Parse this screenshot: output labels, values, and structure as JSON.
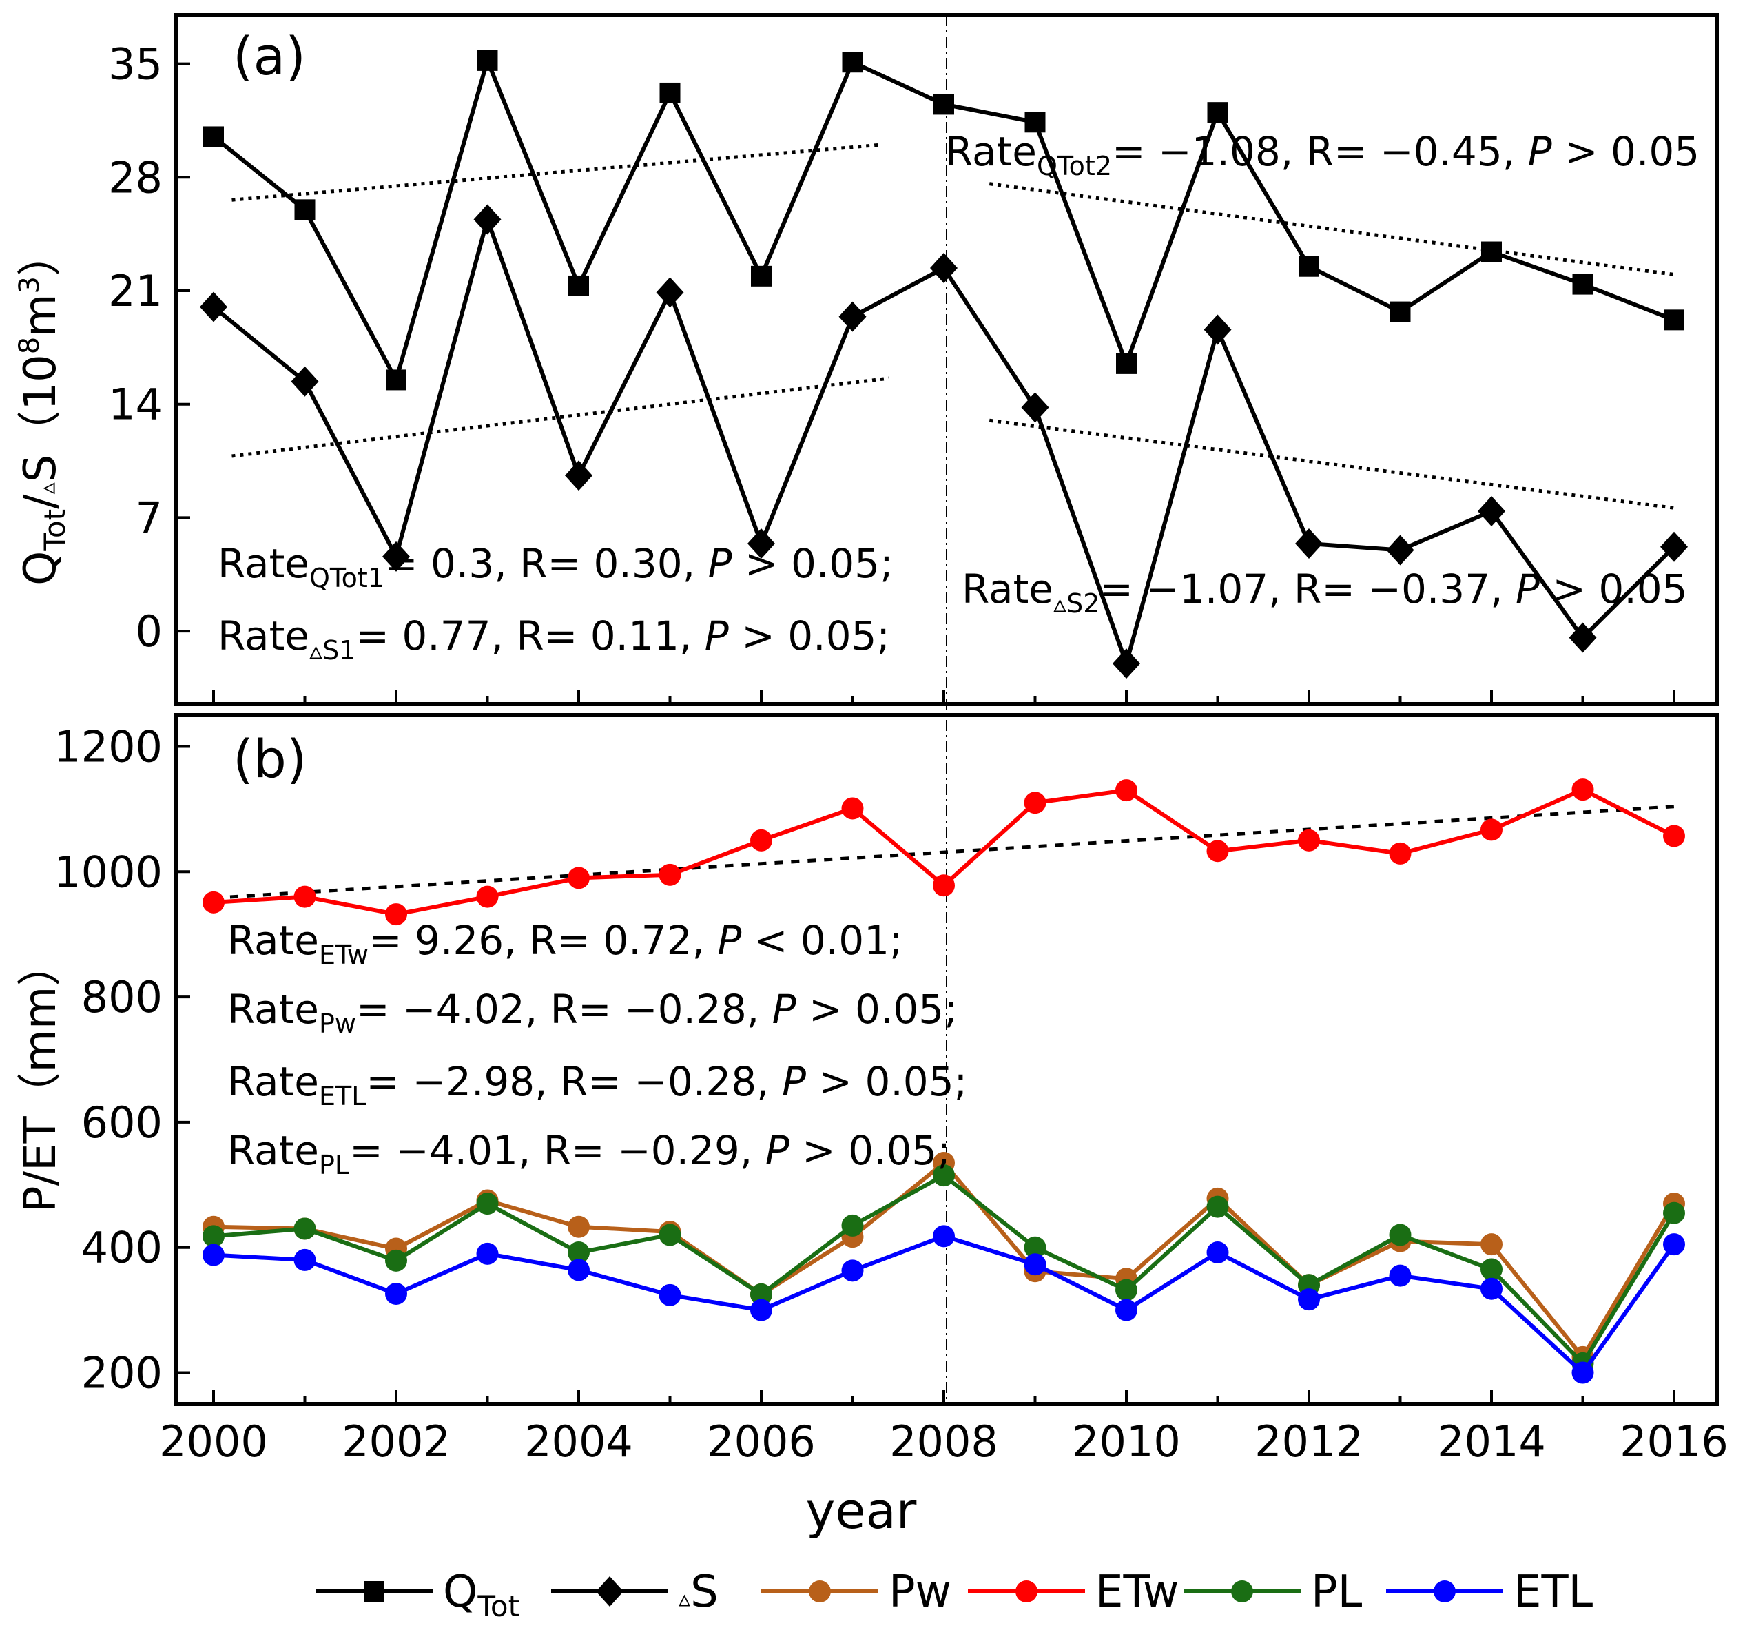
{
  "chart_data": [
    {
      "id": "a",
      "type": "line",
      "panel_label": "(a)",
      "ylabel_main": "Q",
      "ylabel_sub": "Tot",
      "ylabel_mid": "/",
      "ylabel_delta": "▵",
      "ylabel_S": "S",
      "ylabel_unit_open": "（10",
      "ylabel_unit_sup": "8",
      "ylabel_unit_m": "m",
      "ylabel_unit_sup2": "3",
      "ylabel_unit_close": "）",
      "ylim": [
        -4.5,
        38
      ],
      "yticks": [
        "0",
        "7",
        "14",
        "21",
        "28",
        "35"
      ],
      "ytick_values": [
        0,
        7,
        14,
        21,
        28,
        35
      ],
      "x": [
        2000,
        2001,
        2002,
        2003,
        2004,
        2005,
        2006,
        2007,
        2008,
        2009,
        2010,
        2011,
        2012,
        2013,
        2014,
        2015,
        2016
      ],
      "series": [
        {
          "name": "QTot",
          "marker": "square",
          "color": "#000000",
          "values": [
            30.5,
            26.0,
            15.5,
            35.2,
            21.3,
            33.2,
            21.9,
            35.1,
            32.5,
            31.4,
            16.5,
            32.0,
            22.5,
            19.7,
            23.4,
            21.4,
            19.2
          ]
        },
        {
          "name": "ΔS",
          "marker": "diamond",
          "color": "#000000",
          "values": [
            20.0,
            15.4,
            4.6,
            25.4,
            9.6,
            20.9,
            5.4,
            19.4,
            22.4,
            13.8,
            -2.0,
            18.6,
            5.4,
            5.0,
            7.4,
            -0.4,
            5.2
          ]
        }
      ],
      "trendlines": [
        {
          "x": [
            2000.2,
            2007.3
          ],
          "y": [
            26.6,
            30.0
          ]
        },
        {
          "x": [
            2008.5,
            2016.0
          ],
          "y": [
            27.6,
            22.0
          ]
        },
        {
          "x": [
            2000.2,
            2007.4
          ],
          "y": [
            10.8,
            15.6
          ]
        },
        {
          "x": [
            2008.5,
            2016.0
          ],
          "y": [
            13.0,
            7.6
          ]
        }
      ],
      "annotations": [
        {
          "main": "Rate",
          "sub": "QTot2",
          "rest": "= −1.08,  R= −0.45, ",
          "p": "P",
          "tail": " > 0.05"
        },
        {
          "main": "Rate",
          "sub": "QTot1",
          "rest": "= 0.3, R= 0.30, ",
          "p": "P",
          "tail": " > 0.05;"
        },
        {
          "main": "Rate",
          "sub": "▵S1",
          "rest": "= 0.77, R= 0.11, ",
          "p": "P",
          "tail": " > 0.05;"
        },
        {
          "main": "Rate",
          "sub": "▵S2",
          "rest": "= −1.07,  R= −0.37, ",
          "p": "P",
          "tail": " > 0.05"
        }
      ]
    },
    {
      "id": "b",
      "type": "line",
      "panel_label": "(b)",
      "ylabel": "P/ET（mm）",
      "xlabel": "year",
      "ylim": [
        150,
        1250
      ],
      "yticks": [
        "200",
        "400",
        "600",
        "800",
        "1000",
        "1200"
      ],
      "ytick_values": [
        200,
        400,
        600,
        800,
        1000,
        1200
      ],
      "xticks": [
        "2000",
        "2002",
        "2004",
        "2006",
        "2008",
        "2010",
        "2012",
        "2014",
        "2016"
      ],
      "xtick_values": [
        2000,
        2002,
        2004,
        2006,
        2008,
        2010,
        2012,
        2014,
        2016
      ],
      "x": [
        2000,
        2001,
        2002,
        2003,
        2004,
        2005,
        2006,
        2007,
        2008,
        2009,
        2010,
        2011,
        2012,
        2013,
        2014,
        2015,
        2016
      ],
      "series": [
        {
          "name": "Pw",
          "marker": "circle",
          "color": "#b8601a",
          "values": [
            433,
            430,
            398,
            475,
            433,
            425,
            325,
            417,
            535,
            362,
            350,
            478,
            340,
            410,
            405,
            225,
            470
          ]
        },
        {
          "name": "ETw",
          "marker": "circle",
          "color": "#ff0000",
          "values": [
            951,
            960,
            932,
            960,
            990,
            995,
            1050,
            1101,
            978,
            1110,
            1130,
            1033,
            1050,
            1029,
            1067,
            1131,
            1057
          ]
        },
        {
          "name": "PL",
          "marker": "circle",
          "color": "#1a6e14",
          "values": [
            418,
            430,
            379,
            470,
            392,
            420,
            325,
            435,
            515,
            400,
            332,
            465,
            340,
            420,
            365,
            215,
            455
          ]
        },
        {
          "name": "ETL",
          "marker": "circle",
          "color": "#0000ff",
          "values": [
            388,
            380,
            326,
            390,
            364,
            324,
            300,
            363,
            418,
            373,
            300,
            392,
            317,
            355,
            334,
            200,
            405
          ]
        }
      ],
      "trendlines": [
        {
          "x": [
            2000.0,
            2016.0
          ],
          "y": [
            958,
            1104
          ]
        }
      ],
      "annotations": [
        {
          "main": "Rate",
          "sub": "ETw",
          "rest": "= 9.26, R= 0.72, ",
          "p": "P",
          "tail": " < 0.01;"
        },
        {
          "main": "Rate",
          "sub": "Pw",
          "rest": "= −4.02, R= −0.28, ",
          "p": "P",
          "tail": " > 0.05;"
        },
        {
          "main": "Rate",
          "sub": "ETL",
          "rest": "= −2.98, R= −0.28, ",
          "p": "P",
          "tail": " > 0.05;"
        },
        {
          "main": "Rate",
          "sub": "PL",
          "rest": "= −4.01, R= −0.29, ",
          "p": "P",
          "tail": " > 0.05;"
        }
      ]
    }
  ],
  "legend": [
    {
      "main": "Q",
      "sub": "Tot",
      "marker": "square",
      "color": "#000000"
    },
    {
      "main": "▵S",
      "sub": "",
      "marker": "diamond",
      "color": "#000000"
    },
    {
      "main": "Pw",
      "sub": "",
      "marker": "circle",
      "color": "#b8601a"
    },
    {
      "main": "ETw",
      "sub": "",
      "marker": "circle",
      "color": "#ff0000"
    },
    {
      "main": "PL",
      "sub": "",
      "marker": "circle",
      "color": "#1a6e14"
    },
    {
      "main": "ETL",
      "sub": "",
      "marker": "circle",
      "color": "#0000ff"
    }
  ]
}
